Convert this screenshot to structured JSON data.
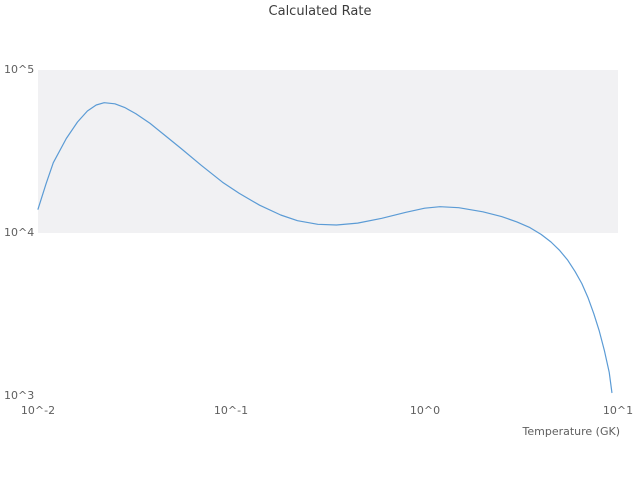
{
  "title": "Calculated Rate",
  "axes": {
    "x_label": "Temperature (GK)",
    "x_ticks": [
      "10^-2",
      "10^-1",
      "10^0",
      "10^1"
    ],
    "y_ticks": [
      "10^3",
      "10^4",
      "10^5"
    ]
  },
  "colors": {
    "line": "#5b9bd5",
    "band": "#f1f1f3",
    "text": "#5f5f5f"
  },
  "chart_data": {
    "type": "line",
    "title": "Calculated Rate",
    "xlabel": "Temperature (GK)",
    "ylabel": "",
    "x_scale": "log",
    "y_scale": "log",
    "xlim": [
      0.01,
      10
    ],
    "ylim": [
      1000,
      100000
    ],
    "x_tick_values": [
      0.01,
      0.1,
      1,
      10
    ],
    "y_tick_values": [
      1000,
      10000,
      100000
    ],
    "shaded_band_y": [
      10000,
      100000
    ],
    "grid": false,
    "legend": "none",
    "series": [
      {
        "name": "Calculated Rate",
        "x": [
          0.01,
          0.011,
          0.012,
          0.014,
          0.016,
          0.018,
          0.02,
          0.022,
          0.025,
          0.028,
          0.032,
          0.038,
          0.045,
          0.055,
          0.07,
          0.09,
          0.11,
          0.14,
          0.18,
          0.22,
          0.28,
          0.35,
          0.45,
          0.6,
          0.8,
          1.0,
          1.2,
          1.5,
          2.0,
          2.5,
          3.0,
          3.5,
          4.0,
          4.5,
          5.0,
          5.5,
          6.0,
          6.5,
          7.0,
          7.5,
          8.0,
          8.5,
          9.0,
          9.3
        ],
        "y": [
          14000,
          20000,
          27000,
          38000,
          48000,
          56000,
          61000,
          63000,
          62000,
          59000,
          54000,
          47000,
          40000,
          33000,
          26000,
          20500,
          17500,
          14800,
          12900,
          11900,
          11300,
          11200,
          11500,
          12300,
          13400,
          14200,
          14500,
          14300,
          13500,
          12600,
          11700,
          10800,
          9800,
          8800,
          7800,
          6800,
          5800,
          4900,
          4000,
          3200,
          2500,
          1900,
          1400,
          1050
        ]
      }
    ]
  }
}
